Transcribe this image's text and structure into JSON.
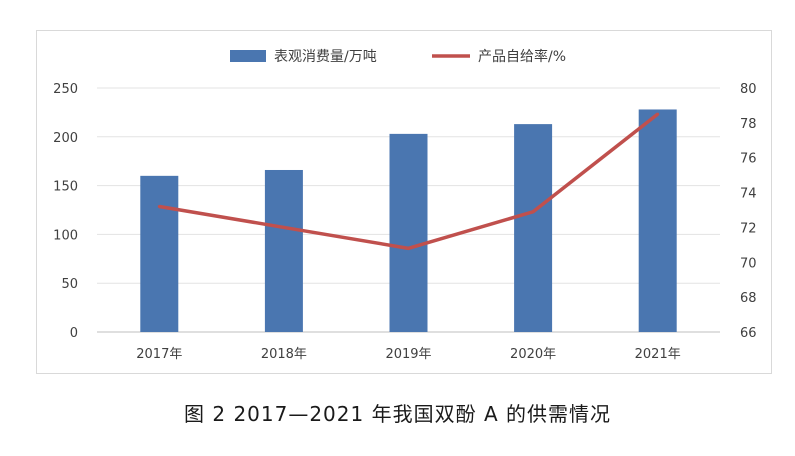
{
  "caption": "图 2  2017—2021 年我国双酚 A 的供需情况",
  "chart_data": {
    "type": "bar",
    "title": "",
    "categories": [
      "2017年",
      "2018年",
      "2019年",
      "2020年",
      "2021年"
    ],
    "series": [
      {
        "name": "表观消费量/万吨",
        "type": "bar",
        "axis": "left",
        "color": "#4a76b0",
        "values": [
          160,
          166,
          203,
          213,
          228
        ]
      },
      {
        "name": "产品自给率/%",
        "type": "line",
        "axis": "right",
        "color": "#c0504d",
        "values": [
          73.2,
          72.0,
          70.8,
          72.9,
          78.5
        ]
      }
    ],
    "y_left": {
      "min": 0,
      "max": 250,
      "ticks": [
        "0",
        "50",
        "100",
        "150",
        "200",
        "250"
      ]
    },
    "y_right": {
      "min": 66,
      "max": 80,
      "ticks": [
        "66",
        "68",
        "70",
        "72",
        "74",
        "76",
        "78",
        "80"
      ]
    },
    "grid": true,
    "legend_position": "top-center"
  }
}
